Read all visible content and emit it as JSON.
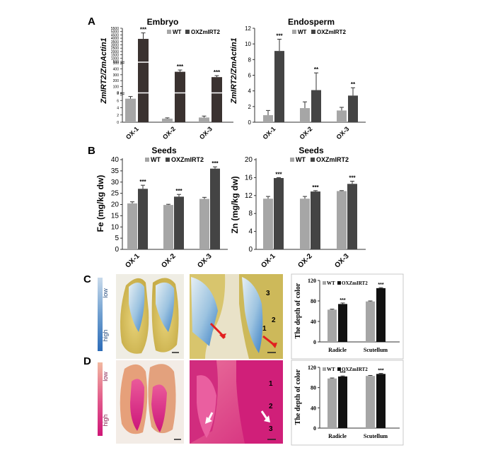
{
  "panel_labels": {
    "a": "A",
    "b": "B",
    "c": "C",
    "d": "D"
  },
  "colors": {
    "wt": "#a6a6a6",
    "ox_dark": "#444444",
    "ox_black": "#111111",
    "blue_stain": "#3f7fc2",
    "pink_stain": "#d6217a"
  },
  "stain_scale": {
    "blue": {
      "low": "low",
      "high": "high"
    },
    "pink": {
      "low": "low",
      "high": "high"
    }
  },
  "photo_labels": {
    "blue_zoom": [
      "3",
      "2",
      "1"
    ],
    "pink_zoom": [
      "1",
      "2",
      "3"
    ]
  },
  "chart_data": [
    {
      "id": "embryo",
      "type": "bar",
      "title": "Embryo",
      "ylabel": "ZmIRT2/ZmActin1",
      "categories": [
        "OX-1",
        "OX-2",
        "OX-3"
      ],
      "series": [
        {
          "name": "WT",
          "values": [
            6.5,
            1.0,
            1.3
          ],
          "errors": [
            0.6,
            0.2,
            0.4
          ]
        },
        {
          "name": "OXZmIRT2",
          "values": [
            3900,
            350,
            260
          ],
          "errors": [
            900,
            30,
            25
          ]
        }
      ],
      "ylim": [
        0,
        5500
      ],
      "y_break": true,
      "yticks_upper": [
        "500",
        "1000",
        "1500",
        "2000",
        "2500",
        "3000",
        "3500",
        "4000",
        "4500",
        "5000",
        "5500"
      ],
      "yticks_mid": [
        "0",
        "100",
        "200",
        "300",
        "400",
        "500"
      ],
      "yticks_lower": [
        "0",
        "2",
        "4",
        "6",
        "8"
      ],
      "annotations": [
        "***",
        "***",
        "***"
      ],
      "legend": "top-right"
    },
    {
      "id": "endosperm",
      "type": "bar",
      "title": "Endosperm",
      "ylabel": "ZmIRT2/ZmActin1",
      "categories": [
        "OX-1",
        "OX-2",
        "OX-3"
      ],
      "series": [
        {
          "name": "WT",
          "values": [
            0.9,
            1.8,
            1.5
          ],
          "errors": [
            0.6,
            0.8,
            0.4
          ]
        },
        {
          "name": "OXZmIRT2",
          "values": [
            9.1,
            4.1,
            3.4
          ],
          "errors": [
            1.5,
            2.2,
            1.0
          ]
        }
      ],
      "ylim": [
        0,
        12
      ],
      "yticks": [
        "0",
        "2",
        "4",
        "6",
        "8",
        "10",
        "12"
      ],
      "annotations": [
        "***",
        "**",
        "**"
      ],
      "legend": "top-right"
    },
    {
      "id": "seeds-fe",
      "type": "bar",
      "title": "Seeds",
      "ylabel": "Fe (mg/kg dw)",
      "categories": [
        "OX-1",
        "OX-2",
        "OX-3"
      ],
      "series": [
        {
          "name": "WT",
          "values": [
            20.5,
            19.8,
            22.5
          ],
          "errors": [
            0.7,
            0.3,
            0.7
          ]
        },
        {
          "name": "OXZmIRT2",
          "values": [
            27.0,
            23.5,
            36.0
          ],
          "errors": [
            1.6,
            1.0,
            0.8
          ]
        }
      ],
      "ylim": [
        0,
        40
      ],
      "yticks": [
        "0",
        "5",
        "10",
        "15",
        "20",
        "25",
        "30",
        "35",
        "40"
      ],
      "annotations": [
        "***",
        "***",
        "***"
      ],
      "legend": "top"
    },
    {
      "id": "seeds-zn",
      "type": "bar",
      "title": "Seeds",
      "ylabel": "Zn (mg/kg dw)",
      "categories": [
        "OX-1",
        "OX-2",
        "OX-3"
      ],
      "series": [
        {
          "name": "WT",
          "values": [
            11.3,
            11.3,
            13.0
          ],
          "errors": [
            0.5,
            0.5,
            0.1
          ]
        },
        {
          "name": "OXZmIRT2",
          "values": [
            15.9,
            12.9,
            14.6
          ],
          "errors": [
            0.1,
            0.2,
            0.6
          ]
        }
      ],
      "ylim": [
        0,
        20
      ],
      "yticks": [
        "0",
        "4",
        "8",
        "12",
        "16",
        "20"
      ],
      "annotations": [
        "***",
        "***",
        "***"
      ],
      "legend": "top"
    },
    {
      "id": "color-c",
      "type": "bar",
      "title": "",
      "ylabel": "The depth of color",
      "categories": [
        "Radicle",
        "Scutellum"
      ],
      "series": [
        {
          "name": "WT",
          "values": [
            63,
            79
          ],
          "errors": [
            1,
            1
          ]
        },
        {
          "name": "OXZmIRT2",
          "values": [
            74,
            105
          ],
          "errors": [
            2,
            1
          ]
        }
      ],
      "ylim": [
        0,
        120
      ],
      "yticks": [
        "0",
        "40",
        "80",
        "120"
      ],
      "annotations": [
        "***",
        "***"
      ],
      "legend": "top-left"
    },
    {
      "id": "color-d",
      "type": "bar",
      "title": "",
      "ylabel": "The depth of color",
      "categories": [
        "Radicle",
        "Scutellum"
      ],
      "series": [
        {
          "name": "WT",
          "values": [
            98,
            103
          ],
          "errors": [
            1,
            1
          ]
        },
        {
          "name": "OXZmIRT2",
          "values": [
            102,
            107
          ],
          "errors": [
            1,
            1
          ]
        }
      ],
      "ylim": [
        0,
        120
      ],
      "yticks": [
        "0",
        "40",
        "80",
        "120"
      ],
      "annotations": [
        "***",
        "***"
      ],
      "legend": "top-left"
    }
  ]
}
